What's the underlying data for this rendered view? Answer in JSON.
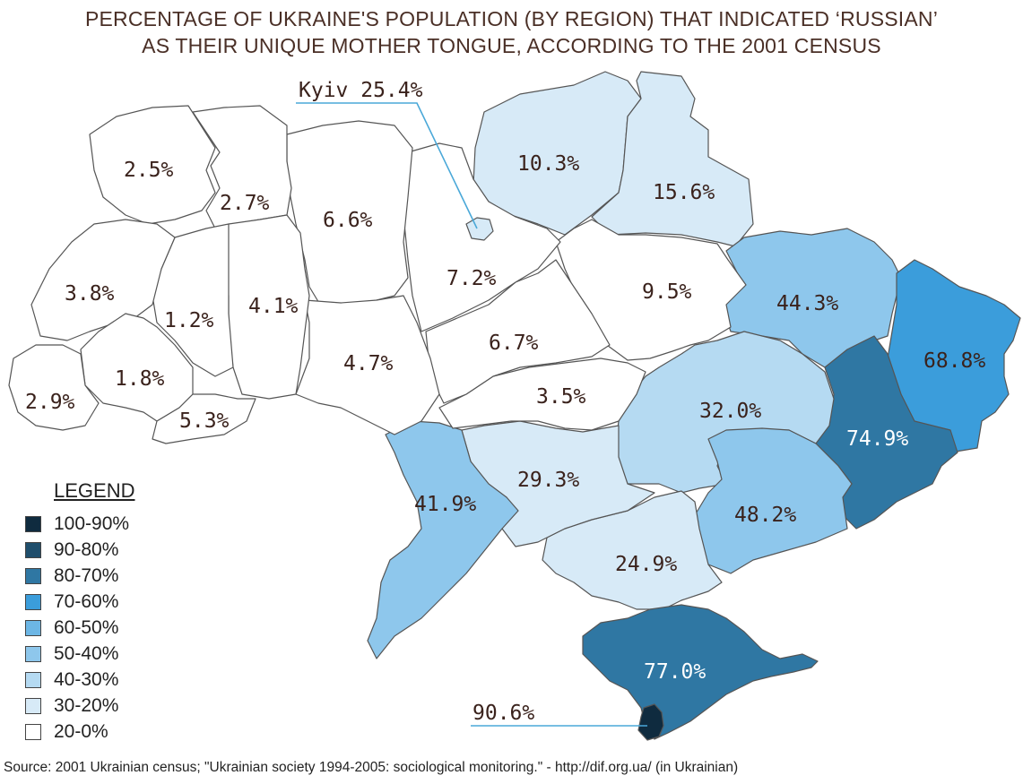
{
  "title": {
    "line1": "PERCENTAGE OF UKRAINE'S POPULATION (BY REGION) THAT INDICATED ‘RUSSIAN’",
    "line2": "AS THEIR UNIQUE MOTHER TONGUE, ACCORDING TO THE 2001 CENSUS"
  },
  "colors": {
    "bin_100_90": "#0f2b3f",
    "bin_90_80": "#1f4e6c",
    "bin_80_70": "#2f77a3",
    "bin_70_60": "#3b9ddb",
    "bin_60_50": "#6cb6e5",
    "bin_50_40": "#8ec7ec",
    "bin_40_30": "#b5daf2",
    "bin_30_20": "#d7eaf7",
    "bin_20_0": "#ffffff",
    "border": "#555555",
    "callout_line": "#4aa8d8"
  },
  "regions": [
    {
      "label": "2.5%"
    },
    {
      "label": "2.7%"
    },
    {
      "label": "6.6%"
    },
    {
      "label": "10.3%"
    },
    {
      "label": "15.6%"
    },
    {
      "label": "3.8%"
    },
    {
      "label": "1.2%"
    },
    {
      "label": "4.1%"
    },
    {
      "label": "7.2%"
    },
    {
      "label": "9.5%"
    },
    {
      "label": "44.3%"
    },
    {
      "label": "68.8%"
    },
    {
      "label": "1.8%"
    },
    {
      "label": "2.9%"
    },
    {
      "label": "5.3%"
    },
    {
      "label": "4.7%"
    },
    {
      "label": "6.7%"
    },
    {
      "label": "3.5%"
    },
    {
      "label": "32.0%"
    },
    {
      "label": "74.9%"
    },
    {
      "label": "41.9%"
    },
    {
      "label": "29.3%"
    },
    {
      "label": "48.2%"
    },
    {
      "label": "24.9%"
    },
    {
      "label": "77.0%"
    }
  ],
  "callouts": {
    "kyiv": "Kyiv 25.4%",
    "sevastopol": "90.6%"
  },
  "legend": {
    "title": "LEGEND",
    "items": [
      {
        "label": "100-90%",
        "color": "#0f2b3f"
      },
      {
        "label": "90-80%",
        "color": "#1f4e6c"
      },
      {
        "label": "80-70%",
        "color": "#2f77a3"
      },
      {
        "label": "70-60%",
        "color": "#3b9ddb"
      },
      {
        "label": "60-50%",
        "color": "#6cb6e5"
      },
      {
        "label": "50-40%",
        "color": "#8ec7ec"
      },
      {
        "label": "40-30%",
        "color": "#b5daf2"
      },
      {
        "label": "30-20%",
        "color": "#d7eaf7"
      },
      {
        "label": "20-0%",
        "color": "#ffffff"
      }
    ]
  },
  "source": "Source:  2001 Ukrainian census; \"Ukrainian society 1994-2005: sociological monitoring.\" - http://dif.org.ua/ (in Ukrainian)"
}
